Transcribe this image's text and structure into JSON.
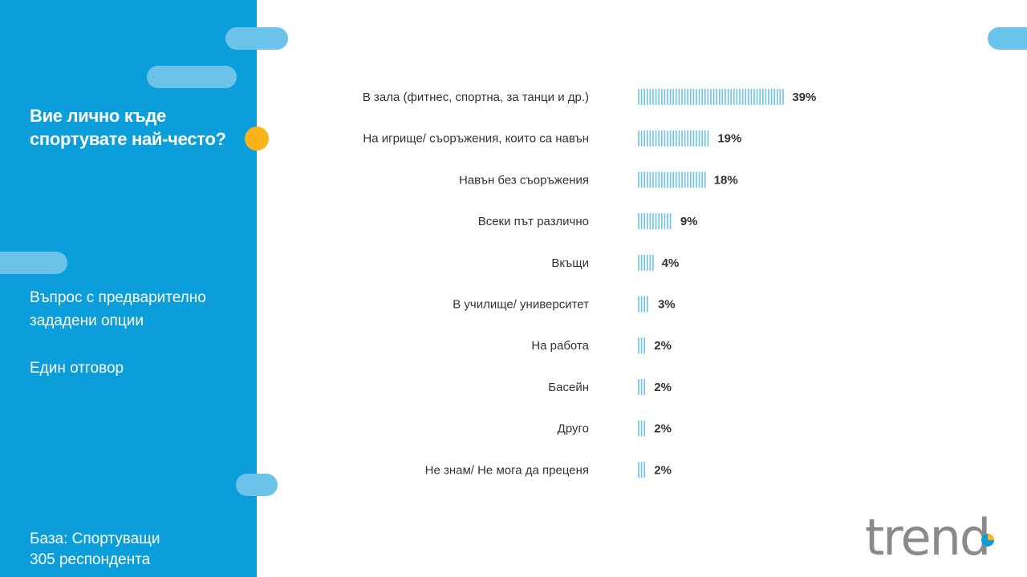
{
  "sidebar": {
    "question": "Вие лично къде спортувате най-често?",
    "info_line1": "Въпрос с предварително зададени опции",
    "info_line2": "Един отговор",
    "base_line1": "База:  Спортуващи",
    "base_line2": "305 респондента"
  },
  "logo": {
    "text": "trend"
  },
  "colors": {
    "sidebar": "#0b9edb",
    "accent_pill": "#6cc3ea",
    "dot": "#f9b31b",
    "bar": "#6cc3ea"
  },
  "chart_data": {
    "type": "bar",
    "orientation": "horizontal",
    "categories": [
      "В зала (фитнес, спортна, за танци и др.)",
      "На игрище/ съоръжения, които са навън",
      "Навън без съоръжения",
      "Всеки път различно",
      "Вкъщи",
      "В училище/ университет",
      "На работа",
      "Басейн",
      "Друго",
      "Не знам/ Не мога да преценя"
    ],
    "values": [
      39,
      19,
      18,
      9,
      4,
      3,
      2,
      2,
      2,
      2
    ],
    "value_labels": [
      "39%",
      "19%",
      "18%",
      "9%",
      "4%",
      "3%",
      "2%",
      "2%",
      "2%",
      "2%"
    ],
    "unit": "%",
    "bar_style": "vertical-hatched",
    "grid": false
  }
}
